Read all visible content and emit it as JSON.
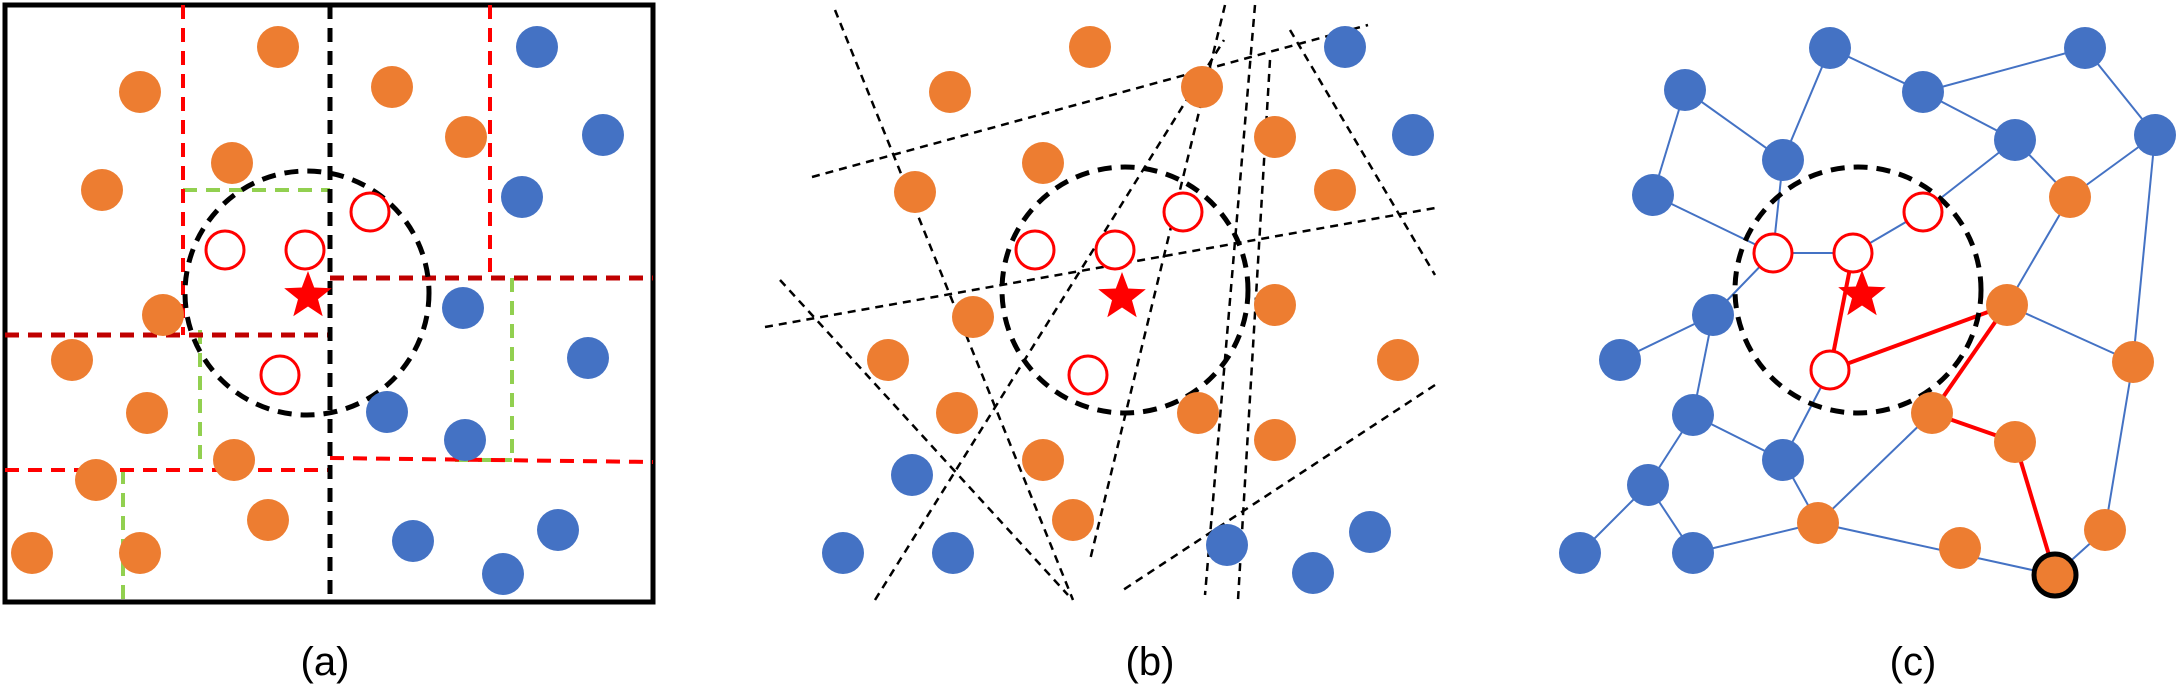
{
  "colors": {
    "orange": "#ED7D31",
    "blue": "#4472C4",
    "red": "#FF0000",
    "dark_red": "#C00000",
    "green": "#92D050",
    "black": "#000000",
    "edge_blue": "#4472C4"
  },
  "panels": [
    {
      "id": "a",
      "caption": "(a)"
    },
    {
      "id": "b",
      "caption": "(b)"
    },
    {
      "id": "c",
      "caption": "(c)"
    }
  ],
  "icons": {
    "query": "red-star-icon",
    "candidate": "hollow-red-circle-icon"
  }
}
